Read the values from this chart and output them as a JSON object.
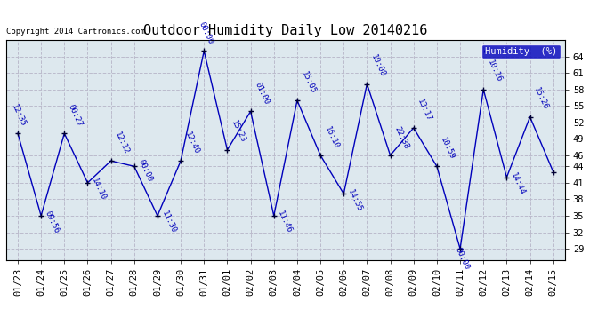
{
  "title": "Outdoor Humidity Daily Low 20140216",
  "copyright_text": "Copyright 2014 Cartronics.com",
  "legend_label": "Humidity  (%)",
  "legend_bg": "#0000bb",
  "legend_fg": "#ffffff",
  "x_labels": [
    "01/23",
    "01/24",
    "01/25",
    "01/26",
    "01/27",
    "01/28",
    "01/29",
    "01/30",
    "01/31",
    "02/01",
    "02/02",
    "02/03",
    "02/04",
    "02/05",
    "02/06",
    "02/07",
    "02/08",
    "02/09",
    "02/10",
    "02/11",
    "02/12",
    "02/13",
    "02/14",
    "02/15"
  ],
  "y_values": [
    50,
    35,
    50,
    41,
    45,
    44,
    35,
    45,
    65,
    47,
    54,
    35,
    56,
    46,
    39,
    59,
    46,
    51,
    44,
    29,
    58,
    42,
    53,
    43
  ],
  "point_labels": [
    "12:35",
    "09:56",
    "00:27",
    "14:10",
    "12:12",
    "00:00",
    "11:30",
    "12:40",
    "00:00",
    "15:23",
    "01:00",
    "11:46",
    "15:05",
    "16:10",
    "14:55",
    "10:08",
    "22:38",
    "13:17",
    "10:59",
    "00:00",
    "10:16",
    "14:44",
    "15:26",
    ""
  ],
  "line_color": "#0000bb",
  "marker_color": "#000033",
  "bg_color": "#ffffff",
  "plot_bg": "#dde8ee",
  "grid_color": "#bbbbcc",
  "ylim_min": 27,
  "ylim_max": 67,
  "yticks": [
    29,
    32,
    35,
    38,
    41,
    44,
    46,
    49,
    52,
    55,
    58,
    61,
    64
  ],
  "title_fontsize": 11,
  "label_fontsize": 6.5,
  "tick_fontsize": 7.5
}
